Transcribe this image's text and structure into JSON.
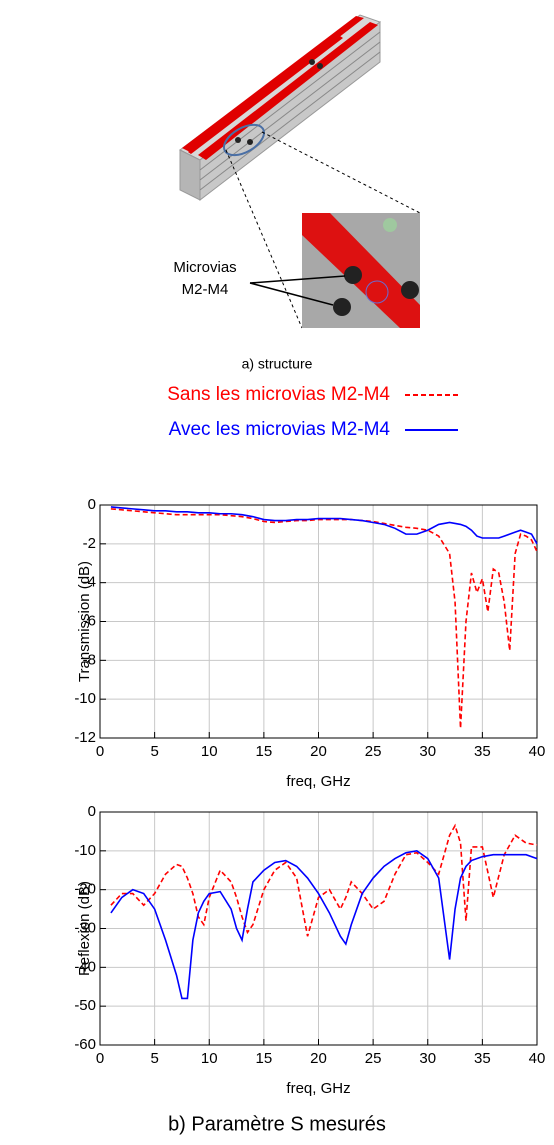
{
  "structure": {
    "callout": [
      "Microvias",
      "M2-M4"
    ],
    "caption": "a) structure"
  },
  "chart_data": [
    {
      "type": "line",
      "ylabel": "Transmission (dB)",
      "xlabel": "freq, GHz",
      "xlim": [
        0,
        40
      ],
      "xticks": [
        0,
        5,
        10,
        15,
        20,
        25,
        30,
        35,
        40
      ],
      "ylim": [
        -12,
        0
      ],
      "yticks": [
        -12,
        -10,
        -8,
        -6,
        -4,
        -2,
        0
      ],
      "grid": true,
      "x": [
        1,
        2,
        3,
        4,
        5,
        6,
        7,
        8,
        9,
        10,
        11,
        12,
        13,
        14,
        15,
        16,
        17,
        18,
        19,
        20,
        21,
        22,
        23,
        24,
        25,
        26,
        27,
        28,
        29,
        30,
        31,
        32,
        32.5,
        33,
        33.5,
        34,
        34.5,
        35,
        35.5,
        36,
        36.5,
        37,
        37.5,
        38,
        38.5,
        39,
        39.5,
        40
      ],
      "series": [
        {
          "name": "Sans les microvias M2-M4",
          "color": "#ff0000",
          "line_style": "dashed",
          "values": [
            -0.2,
            -0.25,
            -0.3,
            -0.35,
            -0.4,
            -0.45,
            -0.5,
            -0.5,
            -0.5,
            -0.5,
            -0.5,
            -0.55,
            -0.6,
            -0.7,
            -0.85,
            -0.9,
            -0.85,
            -0.8,
            -0.8,
            -0.75,
            -0.75,
            -0.75,
            -0.75,
            -0.8,
            -0.85,
            -0.95,
            -1.05,
            -1.15,
            -1.2,
            -1.3,
            -1.6,
            -2.5,
            -5,
            -11.5,
            -6,
            -3.5,
            -4.5,
            -3.8,
            -5.5,
            -3.3,
            -3.5,
            -5,
            -7.5,
            -2.5,
            -1.5,
            -1.6,
            -1.8,
            -2.4
          ]
        },
        {
          "name": "Avec les microvias M2-M4",
          "color": "#0000ff",
          "line_style": "solid",
          "values": [
            -0.1,
            -0.15,
            -0.2,
            -0.25,
            -0.3,
            -0.3,
            -0.35,
            -0.35,
            -0.4,
            -0.4,
            -0.45,
            -0.45,
            -0.5,
            -0.6,
            -0.75,
            -0.8,
            -0.8,
            -0.75,
            -0.75,
            -0.7,
            -0.7,
            -0.7,
            -0.75,
            -0.8,
            -0.9,
            -1.0,
            -1.2,
            -1.5,
            -1.5,
            -1.3,
            -1.0,
            -0.9,
            -0.95,
            -1.0,
            -1.1,
            -1.3,
            -1.6,
            -1.7,
            -1.7,
            -1.7,
            -1.7,
            -1.6,
            -1.5,
            -1.4,
            -1.3,
            -1.4,
            -1.5,
            -2.0
          ]
        }
      ]
    },
    {
      "type": "line",
      "ylabel": "Reflexion (dB)",
      "xlabel": "freq, GHz",
      "xlim": [
        0,
        40
      ],
      "xticks": [
        0,
        5,
        10,
        15,
        20,
        25,
        30,
        35,
        40
      ],
      "ylim": [
        -60,
        0
      ],
      "yticks": [
        -60,
        -50,
        -40,
        -30,
        -20,
        -10,
        0
      ],
      "grid": true,
      "x": [
        1,
        2,
        3,
        4,
        5,
        6,
        7,
        7.5,
        8,
        8.5,
        9,
        9.5,
        10,
        11,
        12,
        12.5,
        13,
        13.5,
        14,
        15,
        16,
        17,
        18,
        19,
        20,
        21,
        22,
        22.5,
        23,
        24,
        25,
        26,
        27,
        28,
        29,
        30,
        31,
        32,
        32.5,
        33,
        33.5,
        34,
        35,
        36,
        37,
        38,
        39,
        40
      ],
      "series": [
        {
          "color": "#ff0000",
          "line_style": "dashed",
          "values": [
            -24,
            -21,
            -21,
            -24,
            -21,
            -16,
            -13.5,
            -14,
            -17,
            -21,
            -27,
            -29,
            -22,
            -15,
            -18,
            -22,
            -27,
            -31,
            -29,
            -20,
            -15,
            -13,
            -17,
            -32,
            -22,
            -20,
            -25,
            -22,
            -18,
            -21,
            -25,
            -23,
            -16,
            -11,
            -10.5,
            -13,
            -16,
            -6,
            -3.5,
            -8,
            -28,
            -9,
            -9,
            -22,
            -11,
            -6,
            -8,
            -8.5
          ]
        },
        {
          "color": "#0000ff",
          "line_style": "solid",
          "values": [
            -26,
            -22,
            -20,
            -21,
            -25,
            -33,
            -42,
            -48,
            -48,
            -33,
            -26,
            -23,
            -21,
            -20.5,
            -25,
            -30,
            -33,
            -25,
            -18,
            -15,
            -13,
            -12.5,
            -14,
            -17,
            -21,
            -26,
            -32,
            -34,
            -29,
            -21,
            -17,
            -14,
            -12,
            -10.5,
            -10,
            -12,
            -17,
            -38,
            -25,
            -17,
            -14,
            -12.5,
            -11.5,
            -11,
            -11,
            -11,
            -11,
            -12
          ]
        }
      ]
    }
  ],
  "caption": "b) Paramètre S mesurés"
}
